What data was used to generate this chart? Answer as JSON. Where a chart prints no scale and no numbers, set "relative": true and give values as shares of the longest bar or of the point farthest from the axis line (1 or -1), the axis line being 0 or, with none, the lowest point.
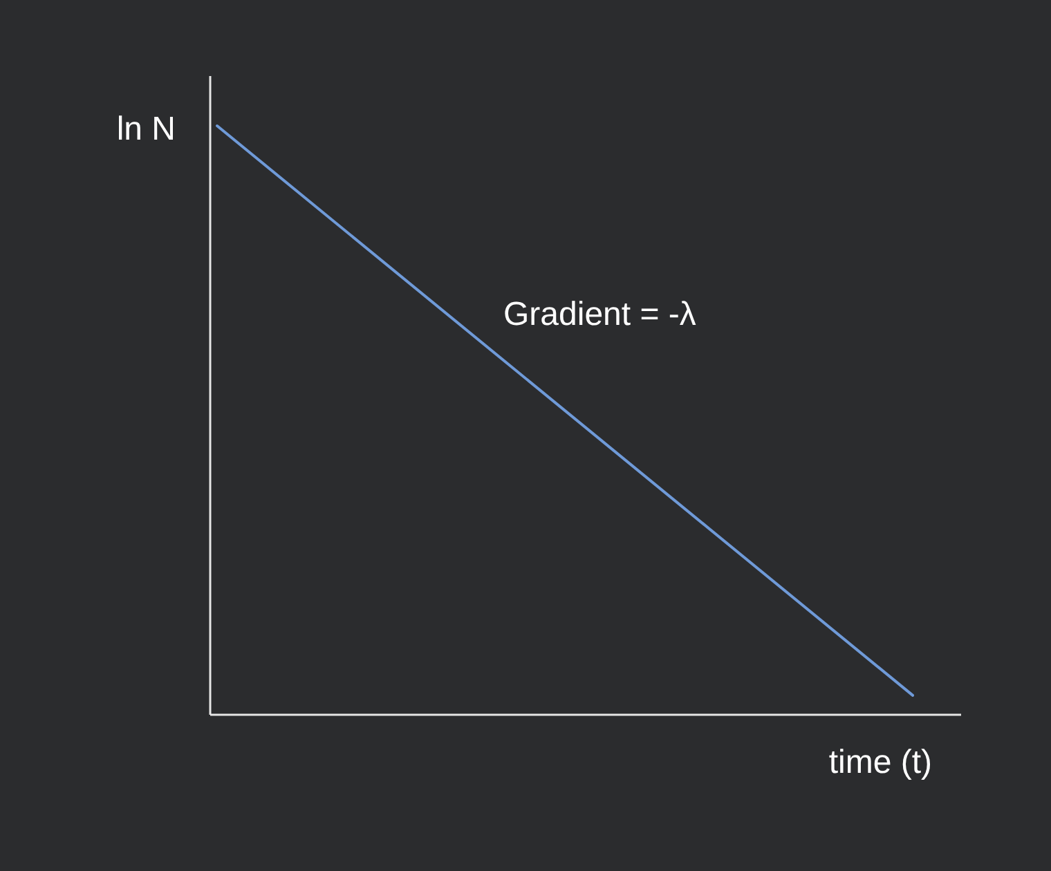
{
  "chart_data": {
    "type": "line",
    "relative": true,
    "xlabel": "time (t)",
    "ylabel": "ln N",
    "annotations": [
      "Gradient = -λ"
    ],
    "categories": [
      null,
      null
    ],
    "series": [
      {
        "color": "#6f9ad8",
        "values": [
          1,
          0.033
        ]
      }
    ],
    "marker": "none"
  }
}
